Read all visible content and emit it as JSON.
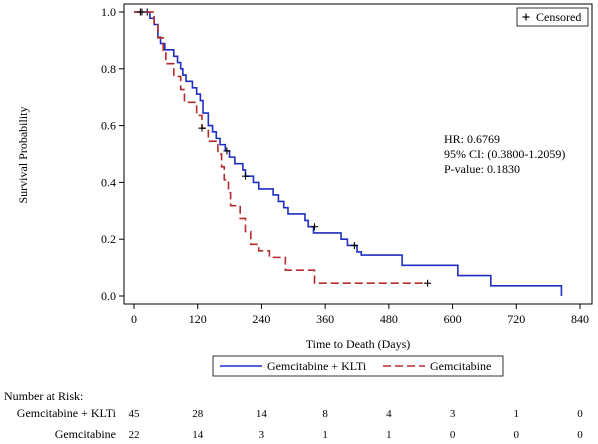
{
  "chart_data": {
    "type": "line",
    "subtype": "kaplan-meier",
    "xlabel": "Time to Death (Days)",
    "ylabel": "Survival Probability",
    "xlim": [
      0,
      840
    ],
    "ylim": [
      0,
      1.0
    ],
    "xticks": [
      0,
      120,
      240,
      360,
      480,
      600,
      720,
      840
    ],
    "yticks": [
      0.0,
      0.2,
      0.4,
      0.6,
      0.8,
      1.0
    ],
    "grid": false,
    "censored_legend_label": "Censored",
    "legend_position": "bottom",
    "annotations": [
      "HR: 0.6769",
      "95% CI: (0.3800-1.2059)",
      "P-value: 0.1830"
    ],
    "series": [
      {
        "name": "Gemcitabine + KLTi",
        "color": "#1f2fbf",
        "dash": "solid",
        "steps": [
          [
            0,
            1.0
          ],
          [
            30,
            0.978
          ],
          [
            38,
            0.956
          ],
          [
            45,
            0.911
          ],
          [
            50,
            0.889
          ],
          [
            58,
            0.867
          ],
          [
            75,
            0.844
          ],
          [
            82,
            0.822
          ],
          [
            88,
            0.8
          ],
          [
            92,
            0.778
          ],
          [
            98,
            0.756
          ],
          [
            110,
            0.733
          ],
          [
            118,
            0.711
          ],
          [
            125,
            0.688
          ],
          [
            130,
            0.644
          ],
          [
            140,
            0.6
          ],
          [
            148,
            0.578
          ],
          [
            155,
            0.555
          ],
          [
            162,
            0.533
          ],
          [
            172,
            0.511
          ],
          [
            180,
            0.489
          ],
          [
            190,
            0.466
          ],
          [
            205,
            0.444
          ],
          [
            210,
            0.422
          ],
          [
            225,
            0.4
          ],
          [
            235,
            0.377
          ],
          [
            262,
            0.356
          ],
          [
            272,
            0.333
          ],
          [
            282,
            0.311
          ],
          [
            290,
            0.289
          ],
          [
            322,
            0.266
          ],
          [
            328,
            0.244
          ],
          [
            338,
            0.222
          ],
          [
            390,
            0.2
          ],
          [
            402,
            0.178
          ],
          [
            420,
            0.155
          ],
          [
            428,
            0.144
          ],
          [
            505,
            0.108
          ],
          [
            610,
            0.072
          ],
          [
            672,
            0.036
          ],
          [
            805,
            0.0
          ]
        ],
        "end_x": 805,
        "censored": [
          [
            15,
            1.0
          ],
          [
            25,
            1.0
          ],
          [
            175,
            0.511
          ],
          [
            210,
            0.422
          ],
          [
            340,
            0.244
          ],
          [
            415,
            0.178
          ]
        ]
      },
      {
        "name": "Gemcitabine",
        "color": "#b52b2b",
        "dash": "dashed",
        "steps": [
          [
            0,
            1.0
          ],
          [
            38,
            0.955
          ],
          [
            45,
            0.909
          ],
          [
            55,
            0.864
          ],
          [
            60,
            0.818
          ],
          [
            75,
            0.773
          ],
          [
            88,
            0.727
          ],
          [
            95,
            0.682
          ],
          [
            118,
            0.636
          ],
          [
            128,
            0.591
          ],
          [
            140,
            0.545
          ],
          [
            158,
            0.5
          ],
          [
            165,
            0.455
          ],
          [
            170,
            0.409
          ],
          [
            178,
            0.364
          ],
          [
            182,
            0.318
          ],
          [
            200,
            0.273
          ],
          [
            210,
            0.227
          ],
          [
            220,
            0.182
          ],
          [
            235,
            0.159
          ],
          [
            255,
            0.136
          ],
          [
            285,
            0.091
          ],
          [
            340,
            0.045
          ]
        ],
        "end_x": 553,
        "censored": [
          [
            12,
            1.0
          ],
          [
            128,
            0.591
          ],
          [
            553,
            0.045
          ]
        ]
      }
    ],
    "number_at_risk": {
      "title": "Number at Risk:",
      "times": [
        0,
        120,
        240,
        360,
        480,
        600,
        720,
        840
      ],
      "rows": [
        {
          "label": "Gemcitabine + KLTi",
          "values": [
            45,
            28,
            14,
            8,
            4,
            3,
            1,
            0
          ]
        },
        {
          "label": "Gemcitabine",
          "values": [
            22,
            14,
            3,
            1,
            1,
            0,
            0,
            0
          ]
        }
      ]
    }
  }
}
